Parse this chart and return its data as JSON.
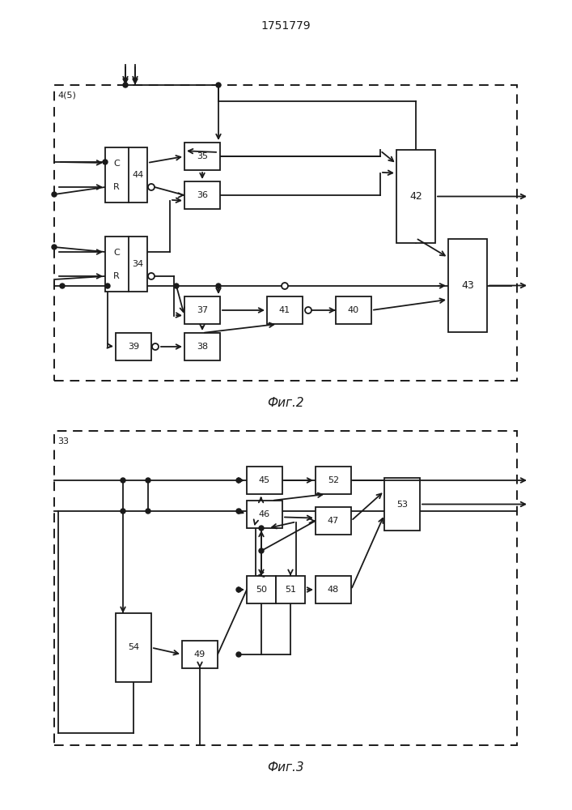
{
  "title": "1751779",
  "title_fontsize": 10,
  "fig1_label": "4(5)",
  "fig1_caption": "Фиг.2",
  "fig2_label": "33",
  "fig2_caption": "Фиг.3",
  "line_color": "#1a1a1a",
  "text_color": "#1a1a1a"
}
